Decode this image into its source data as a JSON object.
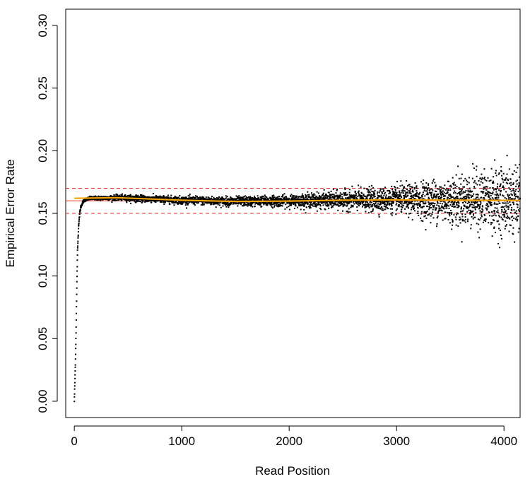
{
  "chart_data": {
    "type": "scatter",
    "title": "",
    "xlabel": "Read Position",
    "ylabel": "Empirical Error Rate",
    "xlim": [
      -80,
      4150
    ],
    "ylim": [
      -0.013,
      0.313
    ],
    "xticks": [
      0,
      1000,
      2000,
      3000,
      4000
    ],
    "xtick_labels": [
      "0",
      "1000",
      "2000",
      "3000",
      "4000"
    ],
    "yticks": [
      0.0,
      0.05,
      0.1,
      0.15,
      0.2,
      0.25,
      0.3
    ],
    "ytick_labels": [
      "0.00",
      "0.05",
      "0.10",
      "0.15",
      "0.20",
      "0.25",
      "0.30"
    ],
    "grid": false,
    "legend": "none",
    "reference_lines": [
      {
        "kind": "horizontal",
        "y": 0.16,
        "style": "solid",
        "color": "#e8302a"
      },
      {
        "kind": "horizontal",
        "y": 0.17,
        "style": "dashed",
        "color": "#e8302a"
      },
      {
        "kind": "horizontal",
        "y": 0.15,
        "style": "dashed",
        "color": "#e8302a"
      }
    ],
    "trend_line": {
      "color": "#f5a300",
      "points": [
        [
          0,
          0.162
        ],
        [
          400,
          0.1625
        ],
        [
          1000,
          0.1605
        ],
        [
          1500,
          0.1595
        ],
        [
          2000,
          0.1598
        ],
        [
          2500,
          0.1605
        ],
        [
          3000,
          0.1608
        ],
        [
          3500,
          0.1605
        ],
        [
          4150,
          0.1603
        ]
      ]
    },
    "point_color": "#000000",
    "series": [
      {
        "values_description_mean": [
          [
            0,
            0.0
          ],
          [
            5,
            0.015
          ],
          [
            10,
            0.03
          ],
          [
            15,
            0.05
          ],
          [
            20,
            0.075
          ],
          [
            25,
            0.1
          ],
          [
            30,
            0.12
          ],
          [
            40,
            0.14
          ],
          [
            50,
            0.15
          ],
          [
            60,
            0.155
          ],
          [
            80,
            0.159
          ],
          [
            100,
            0.161
          ],
          [
            150,
            0.162
          ],
          [
            400,
            0.1625
          ],
          [
            1000,
            0.1605
          ],
          [
            1500,
            0.1595
          ],
          [
            2000,
            0.16
          ],
          [
            2500,
            0.1605
          ],
          [
            3000,
            0.161
          ],
          [
            3500,
            0.1605
          ],
          [
            4150,
            0.1605
          ]
        ],
        "spread_by_x": [
          [
            0,
            0.0005
          ],
          [
            500,
            0.0012
          ],
          [
            1000,
            0.0015
          ],
          [
            2000,
            0.0022
          ],
          [
            2500,
            0.0035
          ],
          [
            3000,
            0.005
          ],
          [
            3500,
            0.009
          ],
          [
            4150,
            0.014
          ]
        ]
      }
    ]
  }
}
